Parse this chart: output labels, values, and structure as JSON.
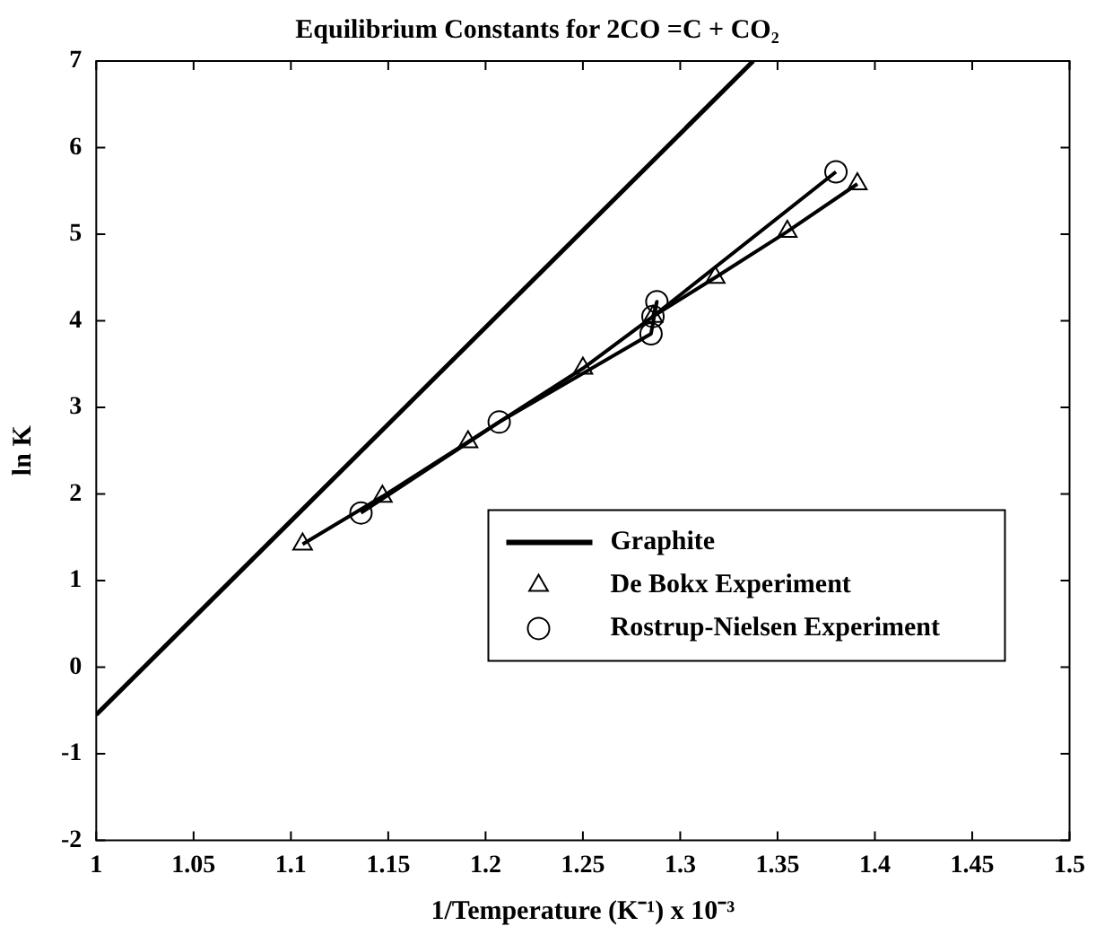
{
  "chart_data": {
    "type": "line",
    "title": "Equilibrium Constants for 2CO =C + CO₂",
    "xlabel": "1/Temperature (K⁻¹) x 10⁻³",
    "ylabel": "ln K",
    "xlim": [
      1,
      1.5
    ],
    "xticks": [
      1,
      1.05,
      1.1,
      1.15,
      1.2,
      1.25,
      1.3,
      1.35,
      1.4,
      1.45,
      1.5
    ],
    "ylim": [
      -2,
      7
    ],
    "yticks": [
      -2,
      -1,
      0,
      1,
      2,
      3,
      4,
      5,
      6,
      7
    ],
    "grid": false,
    "legend": "bottom right",
    "series": [
      {
        "name": "Graphite",
        "color": "#000000",
        "marker": "none",
        "x": [
          1,
          1.3375
        ],
        "values": [
          -0.55,
          7
        ]
      },
      {
        "name": "De Bokx Experiment",
        "color": "#000000",
        "marker": "triangle",
        "x": [
          1.106,
          1.147,
          1.191,
          1.25,
          1.286,
          1.318,
          1.355,
          1.391
        ],
        "values": [
          1.42,
          1.97,
          2.6,
          3.45,
          4.05,
          4.5,
          5.03,
          5.58
        ]
      },
      {
        "name": "Rostrup-Nielsen Experiment",
        "color": "#000000",
        "marker": "circle",
        "x": [
          1.136,
          1.207,
          1.285,
          1.288,
          1.286,
          1.38
        ],
        "values": [
          1.78,
          2.83,
          3.85,
          4.22,
          4.05,
          5.72
        ]
      }
    ]
  }
}
